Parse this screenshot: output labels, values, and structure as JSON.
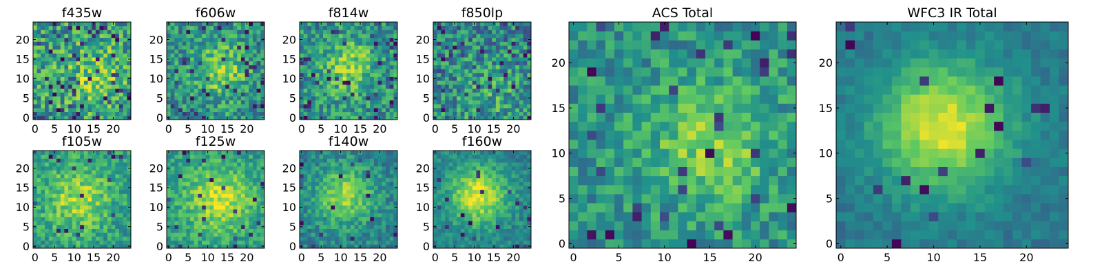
{
  "figure": {
    "colormap": "viridis",
    "colorscale": [
      "#440154",
      "#3b528b",
      "#21918c",
      "#5ec962",
      "#fde725"
    ],
    "frame_color": "#000000"
  },
  "chart_data": [
    {
      "type": "heatmap",
      "title": "f435w",
      "grid_size": 25,
      "xlim": [
        0,
        24
      ],
      "ylim": [
        0,
        24
      ],
      "xticks": [
        0,
        5,
        10,
        15,
        20
      ],
      "yticks": [
        0,
        5,
        10,
        15,
        20
      ],
      "model": {
        "seed": 11,
        "peak_x": 15,
        "peak_y": 11,
        "peak_amp": 0.2,
        "sigma": 6,
        "base": 0.55,
        "noise": 0.55,
        "dark_frac": 0.1
      }
    },
    {
      "type": "heatmap",
      "title": "f606w",
      "grid_size": 25,
      "xlim": [
        0,
        24
      ],
      "ylim": [
        0,
        24
      ],
      "xticks": [
        0,
        5,
        10,
        15,
        20
      ],
      "yticks": [
        0,
        5,
        10,
        15,
        20
      ],
      "model": {
        "seed": 23,
        "peak_x": 13,
        "peak_y": 12,
        "peak_amp": 0.3,
        "sigma": 5,
        "base": 0.5,
        "noise": 0.45,
        "dark_frac": 0.06
      }
    },
    {
      "type": "heatmap",
      "title": "f814w",
      "grid_size": 25,
      "xlim": [
        0,
        24
      ],
      "ylim": [
        0,
        24
      ],
      "xticks": [
        0,
        5,
        10,
        15,
        20
      ],
      "yticks": [
        0,
        5,
        10,
        15,
        20
      ],
      "model": {
        "seed": 37,
        "peak_x": 12,
        "peak_y": 13,
        "peak_amp": 0.3,
        "sigma": 5,
        "base": 0.5,
        "noise": 0.45,
        "dark_frac": 0.06
      }
    },
    {
      "type": "heatmap",
      "title": "f850lp",
      "grid_size": 25,
      "xlim": [
        0,
        24
      ],
      "ylim": [
        0,
        24
      ],
      "xticks": [
        0,
        5,
        10,
        15,
        20
      ],
      "yticks": [
        0,
        5,
        10,
        15,
        20
      ],
      "model": {
        "seed": 41,
        "peak_x": 14,
        "peak_y": 6,
        "peak_amp": 0.15,
        "sigma": 7,
        "base": 0.45,
        "noise": 0.5,
        "dark_frac": 0.08
      }
    },
    {
      "type": "heatmap",
      "title": "f105w",
      "grid_size": 25,
      "xlim": [
        0,
        24
      ],
      "ylim": [
        0,
        24
      ],
      "xticks": [
        0,
        5,
        10,
        15,
        20
      ],
      "yticks": [
        0,
        5,
        10,
        15,
        20
      ],
      "model": {
        "seed": 53,
        "peak_x": 11,
        "peak_y": 12,
        "peak_amp": 0.3,
        "sigma": 6,
        "base": 0.55,
        "noise": 0.35,
        "dark_frac": 0.03
      }
    },
    {
      "type": "heatmap",
      "title": "f125w",
      "grid_size": 25,
      "xlim": [
        0,
        24
      ],
      "ylim": [
        0,
        24
      ],
      "xticks": [
        0,
        5,
        10,
        15,
        20
      ],
      "yticks": [
        0,
        5,
        10,
        15,
        20
      ],
      "model": {
        "seed": 67,
        "peak_x": 13,
        "peak_y": 12,
        "peak_amp": 0.35,
        "sigma": 6,
        "base": 0.55,
        "noise": 0.3,
        "dark_frac": 0.03
      }
    },
    {
      "type": "heatmap",
      "title": "f140w",
      "grid_size": 25,
      "xlim": [
        0,
        24
      ],
      "ylim": [
        0,
        24
      ],
      "xticks": [
        0,
        5,
        10,
        15,
        20
      ],
      "yticks": [
        0,
        5,
        10,
        15,
        20
      ],
      "model": {
        "seed": 79,
        "peak_x": 11,
        "peak_y": 13,
        "peak_amp": 0.4,
        "sigma": 5,
        "base": 0.45,
        "noise": 0.3,
        "dark_frac": 0.03
      }
    },
    {
      "type": "heatmap",
      "title": "f160w",
      "grid_size": 25,
      "xlim": [
        0,
        24
      ],
      "ylim": [
        0,
        24
      ],
      "xticks": [
        0,
        5,
        10,
        15,
        20
      ],
      "yticks": [
        0,
        5,
        10,
        15,
        20
      ],
      "model": {
        "seed": 83,
        "peak_x": 11,
        "peak_y": 13,
        "peak_amp": 0.5,
        "sigma": 5,
        "base": 0.45,
        "noise": 0.25,
        "dark_frac": 0.03
      }
    },
    {
      "type": "heatmap",
      "title": "ACS Total",
      "grid_size": 25,
      "xlim": [
        0,
        24
      ],
      "ylim": [
        0,
        24
      ],
      "xticks": [
        0,
        5,
        10,
        15,
        20
      ],
      "yticks": [
        0,
        5,
        10,
        15,
        20
      ],
      "model": {
        "seed": 97,
        "peak_x": 15,
        "peak_y": 11,
        "peak_amp": 0.3,
        "sigma": 5,
        "base": 0.5,
        "noise": 0.35,
        "dark_frac": 0.05
      }
    },
    {
      "type": "heatmap",
      "title": "WFC3 IR Total",
      "grid_size": 25,
      "xlim": [
        0,
        24
      ],
      "ylim": [
        0,
        24
      ],
      "xticks": [
        0,
        5,
        10,
        15,
        20
      ],
      "yticks": [
        0,
        5,
        10,
        15,
        20
      ],
      "model": {
        "seed": 101,
        "peak_x": 11,
        "peak_y": 13,
        "peak_amp": 0.55,
        "sigma": 5,
        "base": 0.4,
        "noise": 0.15,
        "dark_frac": 0.02
      }
    }
  ]
}
